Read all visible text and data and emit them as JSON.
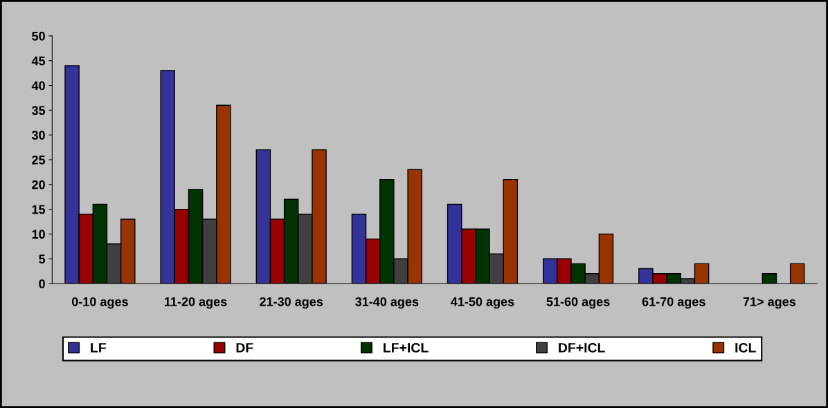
{
  "chart_data": {
    "type": "bar",
    "categories": [
      "0-10 ages",
      "11-20 ages",
      "21-30 ages",
      "31-40 ages",
      "41-50 ages",
      "51-60 ages",
      "61-70 ages",
      "71> ages"
    ],
    "series": [
      {
        "name": "LF",
        "color": "#333399",
        "values": [
          44,
          43,
          27,
          14,
          16,
          5,
          3,
          null
        ]
      },
      {
        "name": "DF",
        "color": "#990000",
        "values": [
          14,
          15,
          13,
          9,
          11,
          5,
          2,
          null
        ]
      },
      {
        "name": "LF+ICL",
        "color": "#003300",
        "values": [
          16,
          19,
          17,
          21,
          11,
          4,
          2,
          2
        ]
      },
      {
        "name": "DF+ICL",
        "color": "#404040",
        "values": [
          8,
          13,
          14,
          5,
          6,
          2,
          1,
          null
        ]
      },
      {
        "name": "ICL",
        "color": "#993300",
        "values": [
          13,
          36,
          27,
          23,
          21,
          10,
          4,
          4
        ]
      }
    ],
    "ylim": [
      0,
      50
    ],
    "yticks": [
      0,
      5,
      10,
      15,
      20,
      25,
      30,
      35,
      40,
      45,
      50
    ],
    "grid": false,
    "legend": "bottom"
  }
}
